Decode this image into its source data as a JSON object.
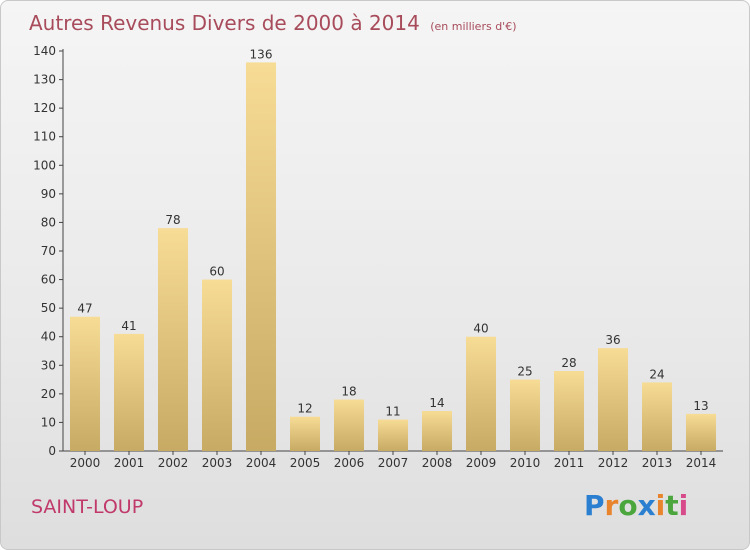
{
  "header": {
    "title": "Autres Revenus Divers de 2000 à 2014",
    "unit": "(en milliers d'€)"
  },
  "footer": {
    "place": "SAINT-LOUP",
    "logo": "Proxiti"
  },
  "colors": {
    "title": "#a84b5b",
    "bar_light": "#f7dc96",
    "bar_dark": "#c9ac66",
    "place": "#c0396a"
  },
  "chart_data": {
    "type": "bar",
    "title": "Autres Revenus Divers de 2000 à 2014",
    "subtitle": "(en milliers d'€)",
    "xlabel": "",
    "ylabel": "",
    "categories": [
      "2000",
      "2001",
      "2002",
      "2003",
      "2004",
      "2005",
      "2006",
      "2007",
      "2008",
      "2009",
      "2010",
      "2011",
      "2012",
      "2013",
      "2014"
    ],
    "values": [
      47,
      41,
      78,
      60,
      136,
      12,
      18,
      11,
      14,
      40,
      25,
      28,
      36,
      24,
      13
    ],
    "ylim": [
      0,
      140
    ],
    "yticks": [
      0,
      10,
      20,
      30,
      40,
      50,
      60,
      70,
      80,
      90,
      100,
      110,
      120,
      130,
      140
    ],
    "grid": false,
    "legend": "none"
  }
}
